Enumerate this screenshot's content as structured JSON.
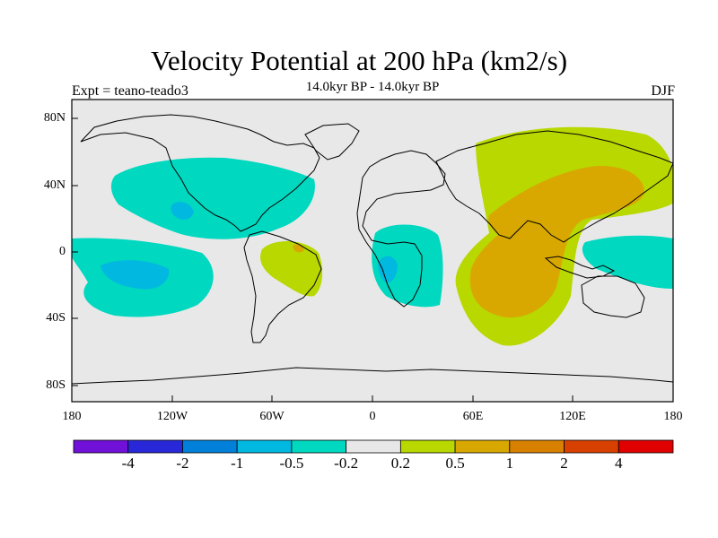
{
  "map": {
    "title": "Velocity Potential at 200 hPa (km2/s)",
    "subtitle": "14.0kyr BP - 14.0kyr BP",
    "left_label": "Expt = teano-teado3",
    "right_label": "DJF",
    "lat_labels": [
      "80N",
      "40N",
      "0",
      "40S",
      "80S"
    ],
    "lon_labels": [
      "180",
      "120W",
      "60W",
      "0",
      "60E",
      "120E",
      "180"
    ],
    "background_color": "#e8e8e8",
    "fields": {
      "negative_light": "#00d8c0",
      "negative_medium": "#00b8e0",
      "negative_strong": "#0080d8",
      "positive_light": "#b8d800",
      "positive_medium": "#d8a800"
    }
  },
  "colorbar": {
    "labels": [
      "-4",
      "-2",
      "-1",
      "-0.5",
      "-0.2",
      "0.2",
      "0.5",
      "1",
      "2",
      "4"
    ],
    "colors": [
      "#7010d8",
      "#2828d8",
      "#0080d8",
      "#00b8e0",
      "#00d8c0",
      "#e8e8e8",
      "#b8d800",
      "#d8a800",
      "#d88000",
      "#d84000",
      "#e00000"
    ]
  }
}
